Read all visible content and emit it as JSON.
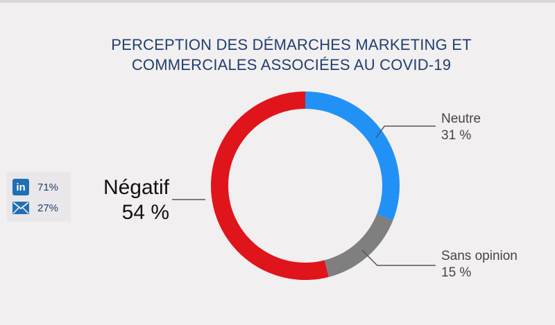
{
  "chart_data": {
    "type": "pie",
    "title": "PERCEPTION DES DÉMARCHES MARKETING ET COMMERCIALES ASSOCIÉES AU COVID-19",
    "title_lines": [
      "PERCEPTION DES DÉMARCHES MARKETING ET",
      "COMMERCIALES ASSOCIÉES AU COVID-19"
    ],
    "donut": true,
    "categories": [
      "Neutre",
      "Sans opinion",
      "Négatif"
    ],
    "values": [
      31,
      15,
      54
    ],
    "value_labels": [
      "31 %",
      "15 %",
      "54 %"
    ],
    "colors": [
      "#2291f6",
      "#7f7f7f",
      "#e0141b"
    ],
    "start_angle_deg": 0
  },
  "source_legend": [
    {
      "icon": "linkedin-icon",
      "value": "71%"
    },
    {
      "icon": "mail-icon",
      "value": "27%"
    }
  ]
}
